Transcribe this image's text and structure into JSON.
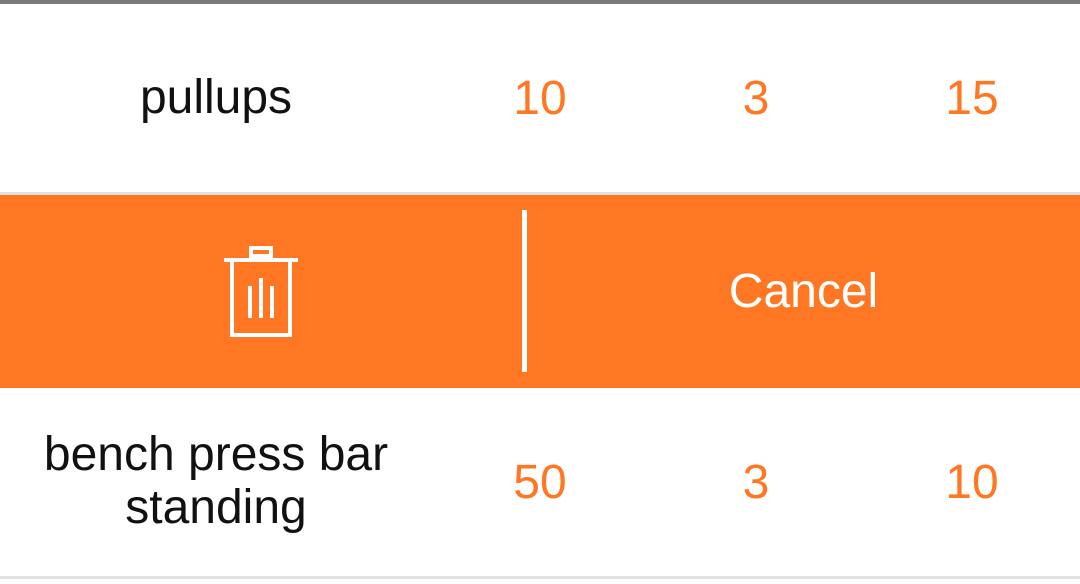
{
  "rows": [
    {
      "name": "pullups",
      "v1": "10",
      "v2": "3",
      "v3": "15"
    },
    {
      "name_line1": "bench press bar",
      "name_line2": "standing",
      "v1": "50",
      "v2": "3",
      "v3": "10"
    }
  ],
  "actions": {
    "cancel_label": "Cancel",
    "delete_icon": "trash-icon"
  },
  "colors": {
    "accent": "#ff7722",
    "text": "#111111",
    "divider": "#e2e2e2"
  }
}
